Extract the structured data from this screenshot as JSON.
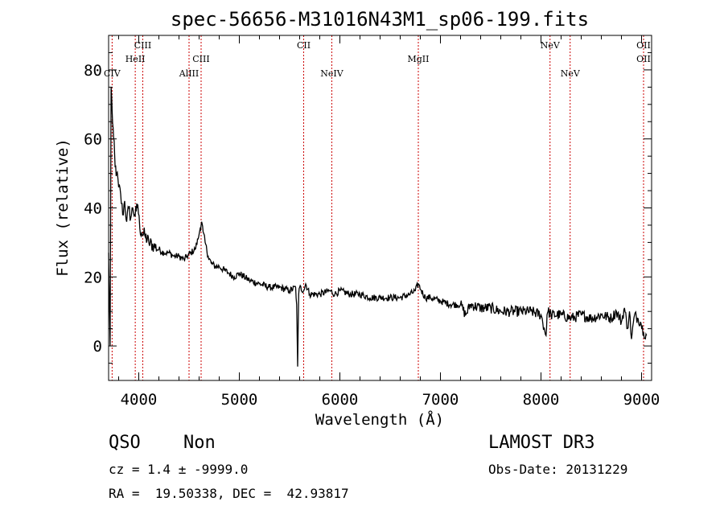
{
  "chart_data": {
    "type": "line",
    "title": "spec-56656-M31016N43M1_sp06-199.fits",
    "xlabel": "Wavelength (Å)",
    "ylabel": "Flux (relative)",
    "xlim": [
      3700,
      9100
    ],
    "ylim": [
      -10,
      90
    ],
    "xticks": [
      4000,
      5000,
      6000,
      7000,
      8000,
      9000
    ],
    "yticks": [
      0,
      20,
      40,
      60,
      80
    ],
    "line_color": "#000000",
    "marker_color": "#cc0000",
    "lines": [
      {
        "label": "CIV",
        "wave": 3735,
        "row": 2
      },
      {
        "label": "HeII",
        "wave": 3965,
        "row": 1
      },
      {
        "label": "CIII",
        "wave": 4040,
        "row": 0
      },
      {
        "label": "AlIII",
        "wave": 4500,
        "row": 2
      },
      {
        "label": "CIII",
        "wave": 4620,
        "row": 1
      },
      {
        "label": "CII",
        "wave": 5640,
        "row": 0
      },
      {
        "label": "NeIV",
        "wave": 5920,
        "row": 2
      },
      {
        "label": "MgII",
        "wave": 6780,
        "row": 1
      },
      {
        "label": "NeV",
        "wave": 8090,
        "row": 0
      },
      {
        "label": "NeV",
        "wave": 8290,
        "row": 2
      },
      {
        "label": "OII",
        "wave": 9020,
        "row": 0
      },
      {
        "label": "OII",
        "wave": 9020,
        "row": 1
      }
    ],
    "series": [
      {
        "name": "spectrum",
        "x": [
          3700,
          3715,
          3725,
          3735,
          3750,
          3765,
          3780,
          3800,
          3820,
          3840,
          3860,
          3880,
          3900,
          3920,
          3940,
          3960,
          3975,
          3990,
          4010,
          4030,
          4060,
          4100,
          4150,
          4200,
          4250,
          4300,
          4350,
          4400,
          4450,
          4480,
          4520,
          4560,
          4590,
          4610,
          4625,
          4640,
          4660,
          4690,
          4720,
          4760,
          4800,
          4850,
          4900,
          4950,
          5000,
          5100,
          5200,
          5300,
          5400,
          5500,
          5560,
          5570,
          5580,
          5590,
          5600,
          5640,
          5660,
          5700,
          5800,
          5900,
          5950,
          6000,
          6100,
          6200,
          6300,
          6400,
          6500,
          6600,
          6700,
          6750,
          6780,
          6810,
          6850,
          6900,
          7000,
          7100,
          7200,
          7250,
          7300,
          7400,
          7500,
          7600,
          7700,
          7800,
          7900,
          8000,
          8050,
          8060,
          8070,
          8100,
          8200,
          8300,
          8400,
          8500,
          8600,
          8700,
          8750,
          8800,
          8830,
          8860,
          8880,
          8900,
          8930,
          8960,
          8990,
          9020,
          9050
        ],
        "y": [
          27,
          0,
          75,
          68,
          60,
          52,
          50,
          46,
          44,
          38,
          42,
          36,
          40,
          37,
          40,
          38,
          39,
          41,
          34,
          33,
          32,
          30,
          29,
          28,
          27,
          27,
          26,
          26,
          25,
          26,
          27,
          28,
          31,
          34,
          36,
          33,
          30,
          26,
          24,
          23,
          23,
          22,
          21,
          20,
          21,
          19,
          18,
          17,
          17,
          16,
          17,
          12,
          -6,
          15,
          17,
          16,
          18,
          15,
          15,
          16,
          15,
          16,
          15,
          15,
          14,
          14,
          14,
          14,
          15,
          16,
          18,
          16,
          14,
          14,
          13,
          12,
          12,
          9,
          12,
          11,
          11,
          10,
          10,
          10,
          10,
          9,
          3,
          9,
          10,
          9,
          9,
          8,
          9,
          8,
          9,
          8,
          10,
          7,
          11,
          5,
          10,
          2,
          9,
          8,
          7,
          4,
          3
        ]
      }
    ]
  },
  "info": {
    "class": "QSO",
    "subclass": "Non",
    "cz": "cz = 1.4 ± -9999.0",
    "radec": "RA =  19.50338, DEC =  42.93817",
    "survey": "LAMOST DR3",
    "obsdate": "Obs-Date: 20131229"
  }
}
